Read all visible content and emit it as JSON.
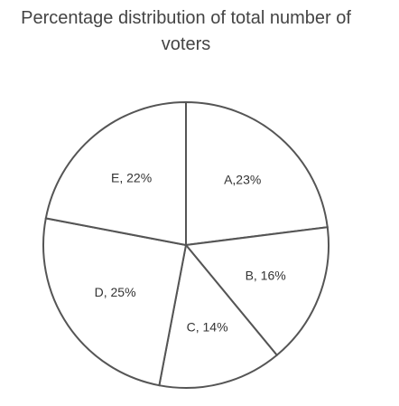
{
  "chart_data": {
    "type": "pie",
    "title": "Percentage distribution of total number of voters",
    "values": [
      23,
      16,
      14,
      25,
      22
    ],
    "value_labels": [
      "A,23%",
      "B, 16%",
      "C, 14%",
      "D, 25%",
      "E, 22%"
    ],
    "color": "#ffffff"
  }
}
